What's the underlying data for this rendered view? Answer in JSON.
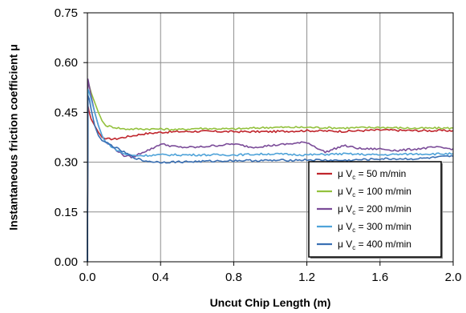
{
  "chart_data": {
    "type": "line",
    "xlabel": "Uncut Chip Length (m)",
    "ylabel": "Instantaneous friction coefficient μ",
    "xlim": [
      0,
      2.0
    ],
    "ylim": [
      0,
      0.75
    ],
    "x_ticks": [
      "0.0",
      "0.4",
      "0.8",
      "1.2",
      "1.6",
      "2.0"
    ],
    "y_ticks": [
      "0.00",
      "0.15",
      "0.30",
      "0.45",
      "0.60",
      "0.75"
    ],
    "grid": true,
    "legend_position": "bottom-right",
    "series": [
      {
        "name": "μ V",
        "subscript": "c",
        "suffix": " = 50 m/min",
        "color": "#c0262d",
        "x": [
          0,
          0.003,
          0.01,
          0.02,
          0.04,
          0.06,
          0.08,
          0.1,
          0.15,
          0.2,
          0.3,
          0.4,
          0.5,
          0.6,
          0.8,
          1.0,
          1.2,
          1.4,
          1.6,
          1.8,
          2.0
        ],
        "y": [
          0.0,
          0.47,
          0.45,
          0.43,
          0.41,
          0.39,
          0.375,
          0.37,
          0.37,
          0.375,
          0.385,
          0.39,
          0.392,
          0.393,
          0.392,
          0.392,
          0.395,
          0.393,
          0.397,
          0.395,
          0.395
        ]
      },
      {
        "name": "μ V",
        "subscript": "c",
        "suffix": " = 100 m/min",
        "color": "#93c13d",
        "x": [
          0,
          0.003,
          0.01,
          0.02,
          0.04,
          0.06,
          0.08,
          0.1,
          0.15,
          0.2,
          0.3,
          0.4,
          0.5,
          0.6,
          0.8,
          1.0,
          1.2,
          1.4,
          1.6,
          1.8,
          2.0
        ],
        "y": [
          0.0,
          0.54,
          0.53,
          0.51,
          0.48,
          0.45,
          0.425,
          0.41,
          0.405,
          0.4,
          0.4,
          0.4,
          0.398,
          0.402,
          0.4,
          0.405,
          0.405,
          0.403,
          0.405,
          0.402,
          0.403
        ]
      },
      {
        "name": "μ V",
        "subscript": "c",
        "suffix": " = 200 m/min",
        "color": "#7a4b98",
        "x": [
          0,
          0.003,
          0.01,
          0.02,
          0.04,
          0.06,
          0.08,
          0.1,
          0.15,
          0.2,
          0.25,
          0.3,
          0.35,
          0.4,
          0.45,
          0.5,
          0.6,
          0.7,
          0.8,
          0.9,
          1.0,
          1.1,
          1.2,
          1.3,
          1.4,
          1.5,
          1.6,
          1.7,
          1.8,
          1.9,
          2.0
        ],
        "y": [
          0.0,
          0.55,
          0.53,
          0.5,
          0.45,
          0.41,
          0.38,
          0.36,
          0.34,
          0.32,
          0.315,
          0.33,
          0.34,
          0.355,
          0.35,
          0.345,
          0.345,
          0.35,
          0.355,
          0.345,
          0.35,
          0.355,
          0.36,
          0.33,
          0.35,
          0.34,
          0.34,
          0.335,
          0.34,
          0.345,
          0.34
        ]
      },
      {
        "name": "μ V",
        "subscript": "c",
        "suffix": " = 300 m/min",
        "color": "#4fa3d9",
        "x": [
          0,
          0.003,
          0.01,
          0.02,
          0.04,
          0.06,
          0.08,
          0.1,
          0.15,
          0.2,
          0.25,
          0.3,
          0.4,
          0.6,
          0.8,
          1.0,
          1.2,
          1.4,
          1.6,
          1.8,
          2.0
        ],
        "y": [
          0.0,
          0.52,
          0.51,
          0.49,
          0.45,
          0.41,
          0.38,
          0.36,
          0.34,
          0.325,
          0.32,
          0.32,
          0.322,
          0.322,
          0.322,
          0.325,
          0.322,
          0.325,
          0.322,
          0.325,
          0.325
        ]
      },
      {
        "name": "μ V",
        "subscript": "c",
        "suffix": " = 400 m/min",
        "color": "#3a70b4",
        "x": [
          0,
          0.003,
          0.01,
          0.02,
          0.04,
          0.06,
          0.08,
          0.1,
          0.15,
          0.2,
          0.25,
          0.3,
          0.35,
          0.4,
          0.6,
          0.8,
          1.0,
          1.2,
          1.4,
          1.6,
          1.8,
          2.0
        ],
        "y": [
          0.0,
          0.5,
          0.49,
          0.46,
          0.41,
          0.38,
          0.365,
          0.36,
          0.345,
          0.33,
          0.315,
          0.305,
          0.302,
          0.3,
          0.302,
          0.305,
          0.305,
          0.307,
          0.305,
          0.31,
          0.31,
          0.318
        ]
      }
    ]
  }
}
